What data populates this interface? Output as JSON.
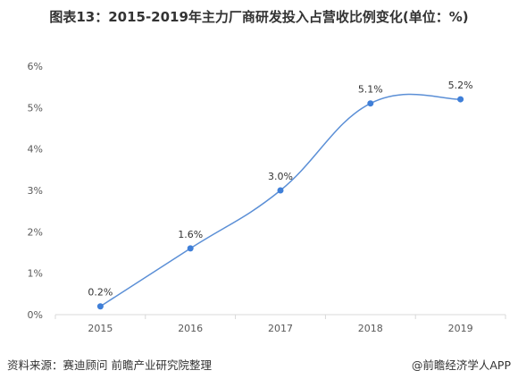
{
  "title": "图表13：2015-2019年主力厂商研发投入占营收比例变化(单位：%)",
  "source": "资料来源：赛迪顾问 前瞻产业研究院整理",
  "credit": "@前瞻经济学人APP",
  "colors": {
    "line": "#5b8fd6",
    "point": "#3f7fd8",
    "axis": "#d9d9d9",
    "text": "#595959"
  },
  "chart_data": {
    "type": "line",
    "smooth": true,
    "title": "图表13：2015-2019年主力厂商研发投入占营收比例变化(单位：%)",
    "xlabel": "",
    "ylabel": "",
    "categories": [
      "2015",
      "2016",
      "2017",
      "2018",
      "2019"
    ],
    "series": [
      {
        "values": [
          0.2,
          1.6,
          3.0,
          5.1,
          5.2
        ],
        "labels": [
          "0.2%",
          "1.6%",
          "3.0%",
          "5.1%",
          "5.2%"
        ]
      }
    ],
    "ylim": [
      0,
      6
    ],
    "yticks": [
      0,
      1,
      2,
      3,
      4,
      5,
      6
    ],
    "ytick_labels": [
      "0%",
      "1%",
      "2%",
      "3%",
      "4%",
      "5%",
      "6%"
    ],
    "grid": false,
    "legend": "none"
  }
}
